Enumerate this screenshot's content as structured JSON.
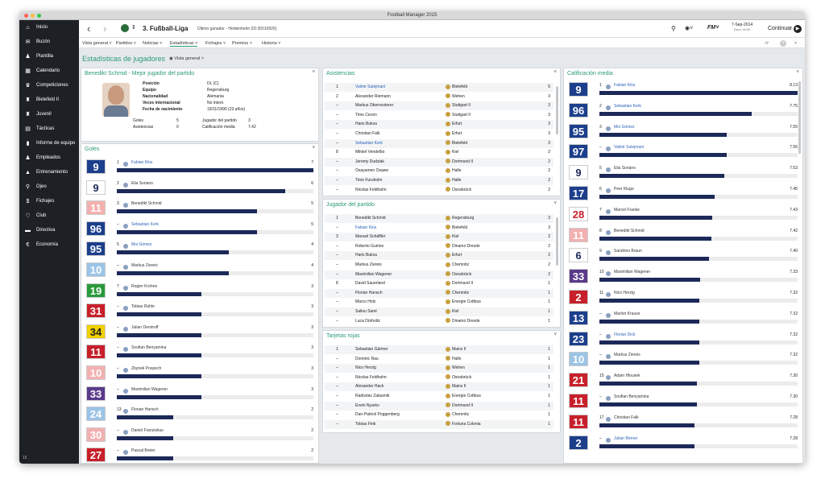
{
  "window": {
    "title": "Football Manager 2015"
  },
  "sidebar": {
    "items": [
      {
        "label": "Inicio",
        "icon": "home-icon",
        "glyph": "⌂"
      },
      {
        "label": "Buzón",
        "icon": "inbox-icon",
        "glyph": "✉"
      },
      {
        "label": "Plantilla",
        "icon": "squad-icon",
        "glyph": "♟"
      },
      {
        "label": "Calendario",
        "icon": "calendar-icon",
        "glyph": "▦"
      },
      {
        "label": "Competiciones",
        "icon": "trophy-icon",
        "glyph": "♛"
      },
      {
        "label": "Bielefeld II",
        "icon": "team-icon",
        "glyph": "♜"
      },
      {
        "label": "Juvenil",
        "icon": "youth-icon",
        "glyph": "♜"
      },
      {
        "label": "Tácticas",
        "icon": "tactics-icon",
        "glyph": "▤"
      },
      {
        "label": "Informe de equipo",
        "icon": "report-icon",
        "glyph": "▮"
      },
      {
        "label": "Empleados",
        "icon": "staff-icon",
        "glyph": "♟"
      },
      {
        "label": "Entrenamiento",
        "icon": "training-icon",
        "glyph": "▲"
      },
      {
        "label": "Ojeo",
        "icon": "scout-icon",
        "glyph": "⚲"
      },
      {
        "label": "Fichajes",
        "icon": "transfer-icon",
        "glyph": "$"
      },
      {
        "label": "Club",
        "icon": "club-icon",
        "glyph": "♡"
      },
      {
        "label": "Directiva",
        "icon": "board-icon",
        "glyph": "▬"
      },
      {
        "label": "Economía",
        "icon": "finance-icon",
        "glyph": "€"
      }
    ],
    "version": "15"
  },
  "topbar": {
    "league": "3. Fußball-Liga",
    "winner": "Último ganador - Heidenheim (ID:35010926)",
    "date": "7-Sep-2014",
    "time": "Dom 14:45",
    "continue": "Continuar",
    "fm": "FM"
  },
  "menu": [
    "Vista general",
    "Partidos",
    "Noticias",
    "Estadísticas",
    "Fichajes",
    "Premios",
    "Historia"
  ],
  "page": {
    "title": "Estadísticas de jugadores",
    "view": "Vista general"
  },
  "best": {
    "title": "Benedikt Schmid - Mejor jugador del partido",
    "labels": [
      "Posición",
      "Equipo",
      "Nacionalidad",
      "Veces internacional",
      "Fecha de nacimiento"
    ],
    "values": [
      "DL (C)",
      "Regensburg",
      "Alemania",
      "No intern.",
      "19/11/1990 (23 años)"
    ],
    "goals_label": "Goles",
    "goals": "5",
    "assists_label": "Asistencias",
    "assists": "0",
    "motm_label": "Jugador del partido",
    "motm": "3",
    "rating_label": "Calificación media",
    "rating": "7.42"
  },
  "goals": {
    "title": "Goles",
    "max": 7,
    "rows": [
      {
        "rank": "1",
        "name": "Fabian Klos",
        "value": "7",
        "num": "9",
        "fg": "#fff",
        "bg": "#1c3f8c",
        "link": true
      },
      {
        "rank": "2",
        "name": "Elia Soriano",
        "value": "6",
        "num": "9",
        "fg": "#1c2958",
        "bg": "#fff",
        "link": false
      },
      {
        "rank": "3",
        "name": "Benedikt Schmid",
        "value": "5",
        "num": "11",
        "fg": "#fff",
        "bg": "#f3b0b0",
        "link": false
      },
      {
        "rank": "–",
        "name": "Sebastian Kerk",
        "value": "5",
        "num": "96",
        "fg": "#fff",
        "bg": "#1c3f8c",
        "link": true
      },
      {
        "rank": "5",
        "name": "Moi Gómez",
        "value": "4",
        "num": "95",
        "fg": "#fff",
        "bg": "#1c3f8c",
        "link": true
      },
      {
        "rank": "–",
        "name": "Markus Ziereis",
        "value": "4",
        "num": "10",
        "fg": "#fff",
        "bg": "#9bc4e6",
        "link": false
      },
      {
        "rank": "7",
        "name": "Rogier Krohne",
        "value": "3",
        "num": "19",
        "fg": "#fff",
        "bg": "#2a9a3a",
        "link": false
      },
      {
        "rank": "–",
        "name": "Tobias Rühle",
        "value": "3",
        "num": "31",
        "fg": "#fff",
        "bg": "#c8202a",
        "link": false
      },
      {
        "rank": "–",
        "name": "Julian Derstroff",
        "value": "3",
        "num": "34",
        "fg": "#222",
        "bg": "#f0d000",
        "link": false
      },
      {
        "rank": "–",
        "name": "Soufian Benyamina",
        "value": "3",
        "num": "11",
        "fg": "#fff",
        "bg": "#c8202a",
        "link": false
      },
      {
        "rank": "–",
        "name": "Zbynek Pospech",
        "value": "3",
        "num": "10",
        "fg": "#fff",
        "bg": "#f3b0b0",
        "link": false
      },
      {
        "rank": "–",
        "name": "Maximilian Wagener",
        "value": "3",
        "num": "33",
        "fg": "#fff",
        "bg": "#5a3a8a",
        "link": false
      },
      {
        "rank": "13",
        "name": "Florian Hansch",
        "value": "2",
        "num": "24",
        "fg": "#fff",
        "bg": "#9bc4e6",
        "link": false
      },
      {
        "rank": "–",
        "name": "Daniel Franziskus",
        "value": "2",
        "num": "30",
        "fg": "#fff",
        "bg": "#f3b0b0",
        "link": false
      },
      {
        "rank": "–",
        "name": "Pascal Breier",
        "value": "2",
        "num": "27",
        "fg": "#fff",
        "bg": "#c8202a",
        "link": false
      }
    ]
  },
  "assists": {
    "title": "Asistencias",
    "rows": [
      {
        "pos": "1",
        "name": "Valmir Sulejmani",
        "club": "Bielefeld",
        "value": "5",
        "link": true
      },
      {
        "pos": "2",
        "name": "Alexander Riemann",
        "club": "Wehen",
        "value": "3",
        "link": false
      },
      {
        "pos": "–",
        "name": "Markus Obernosterer",
        "club": "Stuttgart II",
        "value": "3",
        "link": false
      },
      {
        "pos": "–",
        "name": "Timo Cecen",
        "club": "Stuttgart II",
        "value": "3",
        "link": false
      },
      {
        "pos": "–",
        "name": "Haris Bukva",
        "club": "Erfurt",
        "value": "3",
        "link": false
      },
      {
        "pos": "–",
        "name": "Christian Falk",
        "club": "Erfurt",
        "value": "3",
        "link": false
      },
      {
        "pos": "–",
        "name": "Sebastian Kerk",
        "club": "Bielefeld",
        "value": "3",
        "link": true
      },
      {
        "pos": "8",
        "name": "Mikkel Vendelbo",
        "club": "Kiel",
        "value": "2",
        "link": false
      },
      {
        "pos": "–",
        "name": "Jeremy Dudziak",
        "club": "Dortmund II",
        "value": "2",
        "link": false
      },
      {
        "pos": "–",
        "name": "Osayamen Osawe",
        "club": "Halle",
        "value": "2",
        "link": false
      },
      {
        "pos": "–",
        "name": "Timo Furuholm",
        "club": "Halle",
        "value": "2",
        "link": false
      },
      {
        "pos": "–",
        "name": "Nicolas Feldhahn",
        "club": "Osnabrück",
        "value": "2",
        "link": false
      }
    ]
  },
  "motm": {
    "title": "Jugador del partido",
    "rows": [
      {
        "pos": "1",
        "name": "Benedikt Schmid",
        "club": "Regensburg",
        "value": "3",
        "link": false
      },
      {
        "pos": "–",
        "name": "Fabian Klos",
        "club": "Bielefeld",
        "value": "3",
        "link": true
      },
      {
        "pos": "3",
        "name": "Manuel Schäffler",
        "club": "Kiel",
        "value": "2",
        "link": false
      },
      {
        "pos": "–",
        "name": "Roberto Guirino",
        "club": "Dinamo Dresde",
        "value": "2",
        "link": false
      },
      {
        "pos": "–",
        "name": "Haris Bukva",
        "club": "Erfurt",
        "value": "2",
        "link": false
      },
      {
        "pos": "–",
        "name": "Markus Ziereis",
        "club": "Chemnitz",
        "value": "2",
        "link": false
      },
      {
        "pos": "–",
        "name": "Maximilian Wagener",
        "club": "Osnabrück",
        "value": "2",
        "link": false
      },
      {
        "pos": "8",
        "name": "David Sauerland",
        "club": "Dortmund II",
        "value": "1",
        "link": false
      },
      {
        "pos": "–",
        "name": "Florian Hansch",
        "club": "Chemnitz",
        "value": "1",
        "link": false
      },
      {
        "pos": "–",
        "name": "Marco Holz",
        "club": "Energie Cottbus",
        "value": "1",
        "link": false
      },
      {
        "pos": "–",
        "name": "Saliou Sané",
        "club": "Kiel",
        "value": "1",
        "link": false
      },
      {
        "pos": "–",
        "name": "Luca Dürholtz",
        "club": "Dinamo Dresde",
        "value": "1",
        "link": false
      }
    ]
  },
  "reds": {
    "title": "Tarjetas rojas",
    "rows": [
      {
        "pos": "1",
        "name": "Sebastian Gärtner",
        "club": "Mainz II",
        "value": "1",
        "link": false
      },
      {
        "pos": "–",
        "name": "Dominic Rau",
        "club": "Halle",
        "value": "1",
        "link": false
      },
      {
        "pos": "–",
        "name": "Nico Herzig",
        "club": "Wehen",
        "value": "1",
        "link": false
      },
      {
        "pos": "–",
        "name": "Nicolas Feldhahn",
        "club": "Osnabrück",
        "value": "1",
        "link": false
      },
      {
        "pos": "–",
        "name": "Alexander Hack",
        "club": "Mainz II",
        "value": "1",
        "link": false
      },
      {
        "pos": "–",
        "name": "Radoslav Zabavnik",
        "club": "Energie Cottbus",
        "value": "1",
        "link": false
      },
      {
        "pos": "–",
        "name": "Erwin Nyarko",
        "club": "Dortmund II",
        "value": "1",
        "link": false
      },
      {
        "pos": "–",
        "name": "Dan-Patrick Poggenberg",
        "club": "Chemnitz",
        "value": "1",
        "link": false
      },
      {
        "pos": "–",
        "name": "Tobias Fink",
        "club": "Fortuna Colonia",
        "value": "1",
        "link": false
      }
    ]
  },
  "rating": {
    "title": "Calificación media",
    "min": 6.5,
    "max": 8.13,
    "rows": [
      {
        "rank": "1",
        "name": "Fabian Klos",
        "value": "8.13",
        "num": "9",
        "fg": "#fff",
        "bg": "#1c3f8c",
        "link": true
      },
      {
        "rank": "2",
        "name": "Sebastian Kerk",
        "value": "7.75",
        "num": "96",
        "fg": "#fff",
        "bg": "#1c3f8c",
        "link": true
      },
      {
        "rank": "3",
        "name": "Moi Gómez",
        "value": "7.55",
        "num": "95",
        "fg": "#fff",
        "bg": "#1c3f8c",
        "link": true
      },
      {
        "rank": "–",
        "name": "Valmir Sulejmani",
        "value": "7.55",
        "num": "97",
        "fg": "#fff",
        "bg": "#1c3f8c",
        "link": true
      },
      {
        "rank": "5",
        "name": "Elia Soriano",
        "value": "7.53",
        "num": "9",
        "fg": "#1c2958",
        "bg": "#fff",
        "link": false
      },
      {
        "rank": "6",
        "name": "Peer Kluge",
        "value": "7.45",
        "num": "17",
        "fg": "#fff",
        "bg": "#1c3f8c",
        "link": false
      },
      {
        "rank": "7",
        "name": "Marcel Franke",
        "value": "7.43",
        "num": "28",
        "fg": "#c8202a",
        "bg": "#fff",
        "link": false
      },
      {
        "rank": "8",
        "name": "Benedikt Schmid",
        "value": "7.42",
        "num": "11",
        "fg": "#fff",
        "bg": "#f3b0b0",
        "link": false
      },
      {
        "rank": "9",
        "name": "Sandrino Braun",
        "value": "7.40",
        "num": "6",
        "fg": "#1c2958",
        "bg": "#fff",
        "link": false
      },
      {
        "rank": "10",
        "name": "Maximilian Wagener",
        "value": "7.33",
        "num": "33",
        "fg": "#fff",
        "bg": "#5a3a8a",
        "link": false
      },
      {
        "rank": "11",
        "name": "Nico Herzig",
        "value": "7.32",
        "num": "2",
        "fg": "#fff",
        "bg": "#c8202a",
        "link": false
      },
      {
        "rank": "–",
        "name": "Marlon Krause",
        "value": "7.32",
        "num": "13",
        "fg": "#fff",
        "bg": "#1c3f8c",
        "link": false
      },
      {
        "rank": "–",
        "name": "Florian Dick",
        "value": "7.32",
        "num": "23",
        "fg": "#fff",
        "bg": "#1c3f8c",
        "link": true
      },
      {
        "rank": "–",
        "name": "Markus Ziereis",
        "value": "7.32",
        "num": "10",
        "fg": "#fff",
        "bg": "#9bc4e6",
        "link": false
      },
      {
        "rank": "15",
        "name": "Adam Hlousek",
        "value": "7.30",
        "num": "21",
        "fg": "#fff",
        "bg": "#c8202a",
        "link": false
      },
      {
        "rank": "–",
        "name": "Soufian Benyamina",
        "value": "7.30",
        "num": "11",
        "fg": "#fff",
        "bg": "#c8202a",
        "link": false
      },
      {
        "rank": "17",
        "name": "Christian Falk",
        "value": "7.28",
        "num": "11",
        "fg": "#fff",
        "bg": "#c8202a",
        "link": false
      },
      {
        "rank": "–",
        "name": "Julian Börner",
        "value": "7.28",
        "num": "2",
        "fg": "#fff",
        "bg": "#1c3f8c",
        "link": true
      }
    ]
  }
}
